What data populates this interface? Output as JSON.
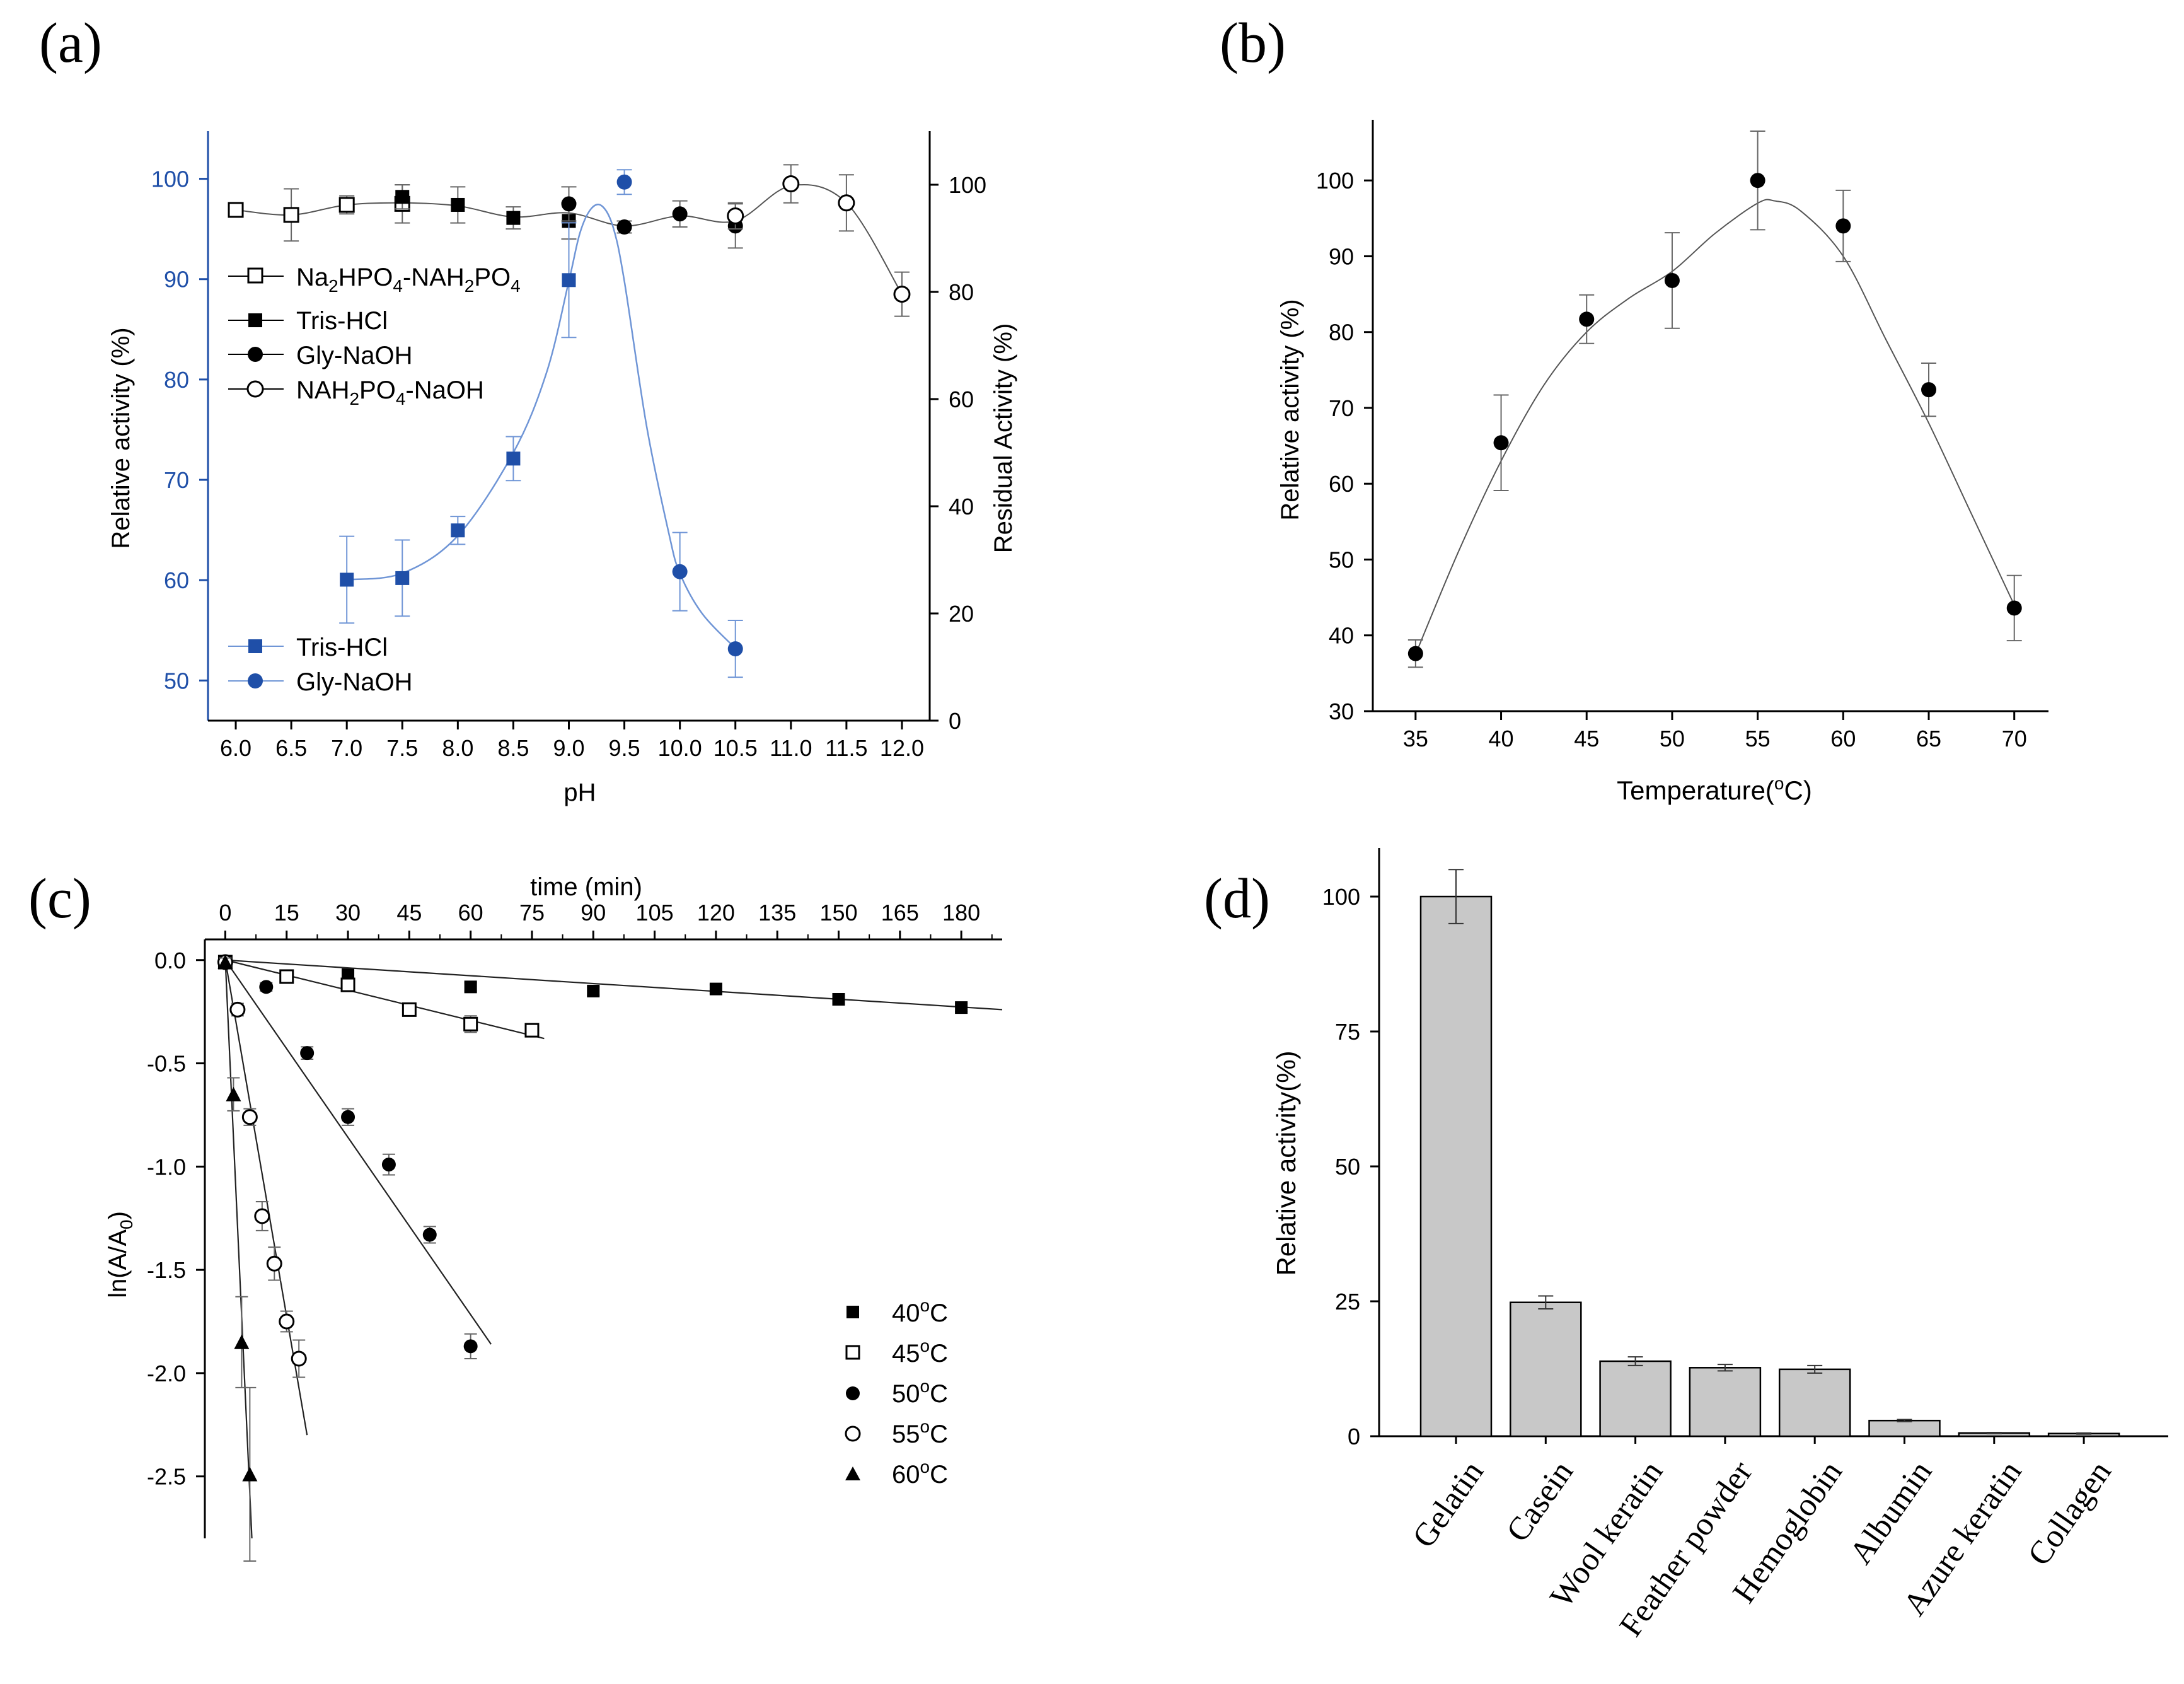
{
  "colors": {
    "black": "#000000",
    "blue": "#1f4fa8",
    "gray_line": "#555555",
    "bar_fill": "#c8c8c8",
    "errbar": "#666666",
    "blue_err": "#6f95d6"
  },
  "chart_data": [
    {
      "id": "a",
      "panel_label": "(a)",
      "type": "scatter",
      "xlabel": "pH",
      "ylabel_left": "Relative activity (%)",
      "ylabel_right": "Residual Activity (%)",
      "xlim": [
        5.75,
        12.25
      ],
      "ylim_left": [
        46,
        104.75
      ],
      "ylim_right": [
        0,
        110
      ],
      "xticks": [
        "6.0",
        "6.5",
        "7.0",
        "7.5",
        "8.0",
        "8.5",
        "9.0",
        "9.5",
        "10.0",
        "10.5",
        "11.0",
        "11.5",
        "12.0"
      ],
      "yticks_left": [
        "50",
        "60",
        "70",
        "80",
        "90",
        "100"
      ],
      "yticks_right": [
        "0",
        "20",
        "40",
        "60",
        "80",
        "100"
      ],
      "legend_top": [
        "Na2HPO4-NAH2PO4",
        "Tris-HCl",
        "Gly-NaOH",
        "NAH2PO4-NaOH"
      ],
      "legend_bottom": [
        "Tris-HCl",
        "Gly-NaOH"
      ],
      "series_left": [
        {
          "name": "Na2HPO4-NAH2PO4",
          "marker": "square-open",
          "x": [
            6.0,
            6.5,
            7.0,
            7.5
          ],
          "y": [
            96.9,
            96.4,
            97.4,
            97.5
          ],
          "err": [
            0.4,
            2.6,
            0.9,
            1.9
          ]
        },
        {
          "name": "Tris-HCl",
          "marker": "square-filled",
          "x": [
            7.5,
            8.0,
            8.5,
            9.0
          ],
          "y": [
            98.2,
            97.4,
            96.1,
            95.8
          ],
          "err": [
            1.2,
            1.8,
            1.1,
            1.8
          ]
        },
        {
          "name": "Gly-NaOH",
          "marker": "circle-filled",
          "x": [
            9.0,
            9.5,
            10.0,
            10.5
          ],
          "y": [
            97.5,
            95.2,
            96.5,
            95.3
          ],
          "err": [
            1.7,
            0.6,
            1.3,
            2.2
          ]
        },
        {
          "name": "NAH2PO4-NaOH",
          "marker": "circle-open",
          "x": [
            10.5,
            11.0,
            11.5,
            12.0
          ],
          "y": [
            96.3,
            99.5,
            97.6,
            88.5
          ],
          "err": [
            1.3,
            1.9,
            2.8,
            2.2
          ]
        }
      ],
      "series_right": [
        {
          "name": "Tris-HCl",
          "marker": "square-filled",
          "x": [
            7.0,
            7.5,
            8.0,
            8.5,
            9.0
          ],
          "y": [
            26.3,
            26.6,
            35.5,
            48.9,
            82.2
          ],
          "err": [
            8.1,
            7.1,
            2.6,
            4.1,
            10.7
          ]
        },
        {
          "name": "Gly-NaOH",
          "marker": "circle-filled",
          "x": [
            9.5,
            10.0,
            10.5
          ],
          "y": [
            100.5,
            27.8,
            13.4
          ],
          "err": [
            2.3,
            7.3,
            5.3
          ]
        }
      ],
      "fit_left": [
        [
          6.0,
          96.9
        ],
        [
          6.5,
          96.4
        ],
        [
          7.0,
          97.4
        ],
        [
          7.5,
          97.6
        ],
        [
          8.0,
          97.3
        ],
        [
          8.5,
          96.2
        ],
        [
          9.0,
          96.6
        ],
        [
          9.5,
          95.3
        ],
        [
          10.0,
          96.3
        ],
        [
          10.5,
          95.8
        ],
        [
          11.0,
          99.3
        ],
        [
          11.5,
          97.6
        ],
        [
          12.0,
          88.5
        ]
      ],
      "fit_right": [
        [
          7.0,
          26.3
        ],
        [
          7.5,
          27.5
        ],
        [
          8.0,
          34.5
        ],
        [
          8.5,
          50.0
        ],
        [
          8.8,
          65.0
        ],
        [
          9.0,
          82.0
        ],
        [
          9.1,
          91.0
        ],
        [
          9.2,
          95.5
        ],
        [
          9.3,
          96.0
        ],
        [
          9.4,
          92.0
        ],
        [
          9.5,
          82.0
        ],
        [
          9.7,
          55.0
        ],
        [
          9.9,
          35.0
        ],
        [
          10.0,
          27.5
        ],
        [
          10.2,
          20.0
        ],
        [
          10.5,
          13.5
        ]
      ]
    },
    {
      "id": "b",
      "panel_label": "(b)",
      "type": "scatter",
      "xlabel": "Temperature(°C)",
      "ylabel": "Relative activity (%)",
      "xlim": [
        32.5,
        72
      ],
      "ylim": [
        30,
        108
      ],
      "xticks": [
        "35",
        "40",
        "45",
        "50",
        "55",
        "60",
        "65",
        "70"
      ],
      "yticks": [
        "30",
        "40",
        "50",
        "60",
        "70",
        "80",
        "90",
        "100"
      ],
      "series": [
        {
          "name": "relative activity",
          "marker": "circle-filled",
          "x": [
            35,
            40,
            45,
            50,
            55,
            60,
            65,
            70
          ],
          "y": [
            37.6,
            65.4,
            81.7,
            86.8,
            100.0,
            94.0,
            72.4,
            43.6
          ],
          "err": [
            1.8,
            6.3,
            3.2,
            6.3,
            6.5,
            4.7,
            3.5,
            4.3
          ]
        }
      ],
      "fit": [
        [
          35,
          37.5
        ],
        [
          37.5,
          51
        ],
        [
          40,
          63
        ],
        [
          42.5,
          73
        ],
        [
          45,
          80
        ],
        [
          47.5,
          84.5
        ],
        [
          50,
          88
        ],
        [
          52.5,
          93
        ],
        [
          55,
          97
        ],
        [
          56,
          97.3
        ],
        [
          57.5,
          96
        ],
        [
          60,
          90
        ],
        [
          62.5,
          79
        ],
        [
          65,
          68
        ],
        [
          67.5,
          56
        ],
        [
          70,
          44
        ]
      ]
    },
    {
      "id": "c",
      "panel_label": "(c)",
      "type": "scatter",
      "xlabel": "time (min)",
      "ylabel": "ln(A/A0)",
      "xlim": [
        -5,
        190
      ],
      "ylim": [
        -2.8,
        0.1
      ],
      "xticks": [
        "0",
        "15",
        "30",
        "45",
        "60",
        "75",
        "90",
        "105",
        "120",
        "135",
        "150",
        "165",
        "180"
      ],
      "yticks": [
        "0.0",
        "-0.5",
        "-1.0",
        "-1.5",
        "-2.0",
        "-2.5"
      ],
      "legend": [
        "40°C",
        "45°C",
        "50°C",
        "55°C",
        "60°C"
      ],
      "series": [
        {
          "name": "40°C",
          "marker": "square-filled",
          "x": [
            0,
            30,
            60,
            90,
            120,
            150,
            180
          ],
          "y": [
            -0.01,
            -0.07,
            -0.13,
            -0.15,
            -0.14,
            -0.19,
            -0.23
          ],
          "err": [
            0.02,
            0.03,
            0.02,
            0.02,
            0.02,
            0.02,
            0.02
          ]
        },
        {
          "name": "45°C",
          "marker": "square-open",
          "x": [
            0,
            15,
            30,
            45,
            60,
            75
          ],
          "y": [
            -0.01,
            -0.08,
            -0.12,
            -0.24,
            -0.31,
            -0.34
          ],
          "err": [
            0.02,
            0.02,
            0.02,
            0.02,
            0.04,
            0.03
          ]
        },
        {
          "name": "50°C",
          "marker": "circle-filled",
          "x": [
            0,
            10,
            20,
            30,
            40,
            50,
            60
          ],
          "y": [
            -0.01,
            -0.13,
            -0.45,
            -0.76,
            -0.99,
            -1.33,
            -1.87
          ],
          "err": [
            0.02,
            0.02,
            0.03,
            0.04,
            0.05,
            0.04,
            0.06
          ]
        },
        {
          "name": "55°C",
          "marker": "circle-open",
          "x": [
            0,
            3,
            6,
            9,
            12,
            15,
            18
          ],
          "y": [
            -0.01,
            -0.24,
            -0.76,
            -1.24,
            -1.47,
            -1.75,
            -1.93
          ],
          "err": [
            0.02,
            0.03,
            0.04,
            0.07,
            0.08,
            0.05,
            0.09
          ]
        },
        {
          "name": "60°C",
          "marker": "triangle-filled",
          "x": [
            0,
            2,
            4,
            6
          ],
          "y": [
            -0.01,
            -0.65,
            -1.85,
            -2.49
          ],
          "err": [
            0.02,
            0.08,
            0.22,
            0.42
          ]
        }
      ],
      "fits": [
        {
          "name": "40°C",
          "x": [
            0,
            190
          ],
          "y": [
            0.0,
            -0.24
          ]
        },
        {
          "name": "45°C",
          "x": [
            0,
            78
          ],
          "y": [
            0.0,
            -0.38
          ]
        },
        {
          "name": "50°C",
          "x": [
            0,
            65
          ],
          "y": [
            0.0,
            -1.86
          ]
        },
        {
          "name": "55°C",
          "x": [
            0,
            20
          ],
          "y": [
            0.0,
            -2.3
          ]
        },
        {
          "name": "60°C",
          "x": [
            0,
            6.5
          ],
          "y": [
            0.0,
            -2.8
          ]
        }
      ]
    },
    {
      "id": "d",
      "panel_label": "(d)",
      "type": "bar",
      "ylabel": "Relative activity(%)",
      "ylim": [
        0,
        109
      ],
      "yticks": [
        "0",
        "25",
        "50",
        "75",
        "100"
      ],
      "categories": [
        "Gelatin",
        "Casein",
        "Wool keratin",
        "Feather powder",
        "Hemoglobin",
        "Albumin",
        "Azure keratin",
        "Collagen"
      ],
      "values": [
        100.0,
        24.8,
        13.9,
        12.7,
        12.4,
        2.9,
        0.6,
        0.5
      ],
      "err": [
        5.0,
        1.2,
        0.8,
        0.6,
        0.7,
        0.2,
        0.1,
        0.1
      ]
    }
  ]
}
